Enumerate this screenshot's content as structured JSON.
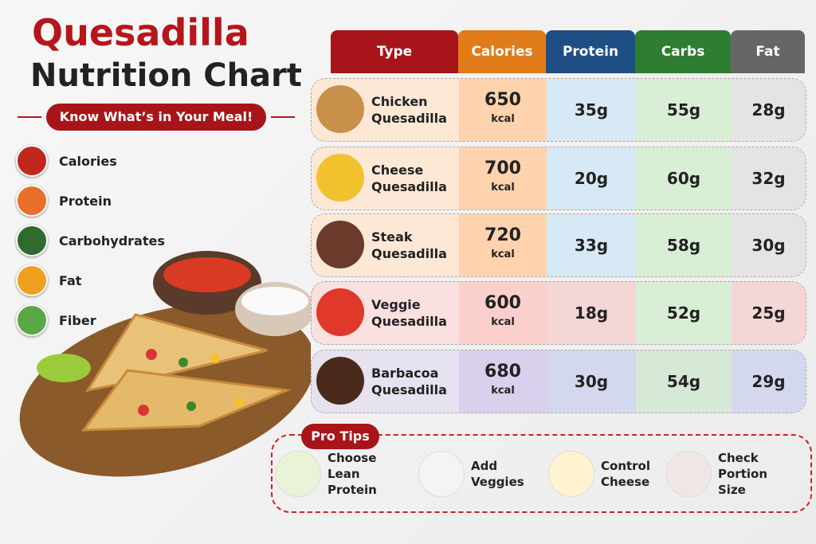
{
  "header": {
    "title": "Quesadilla",
    "title2": "Nutrition Chart",
    "subtitle": "Know What’s in Your Meal!"
  },
  "legend": [
    "Calories",
    "Protein",
    "Carbohydrates",
    "Fat",
    "Fiber"
  ],
  "table": {
    "columns": [
      "Type",
      "Calories",
      "Protein",
      "Carbs",
      "Fat"
    ],
    "rows": [
      [
        "Chicken Quesadilla",
        "650",
        "kcal",
        "35g",
        "55g",
        "28g"
      ],
      [
        "Cheese Quesadilla",
        "700",
        "kcal",
        "20g",
        "60g",
        "32g"
      ],
      [
        "Steak Quesadilla",
        "720",
        "kcal",
        "33g",
        "58g",
        "30g"
      ],
      [
        "Veggie Quesadilla",
        "600",
        "kcal",
        "18g",
        "52g",
        "25g"
      ],
      [
        "Barbacoa Quesadilla",
        "680",
        "kcal",
        "30g",
        "54g",
        "29g"
      ]
    ]
  },
  "tips": {
    "title": "Pro Tips",
    "items": [
      "Choose Lean Protein",
      "Add Veggies",
      "Control Cheese",
      "Check Portion Size"
    ]
  }
}
